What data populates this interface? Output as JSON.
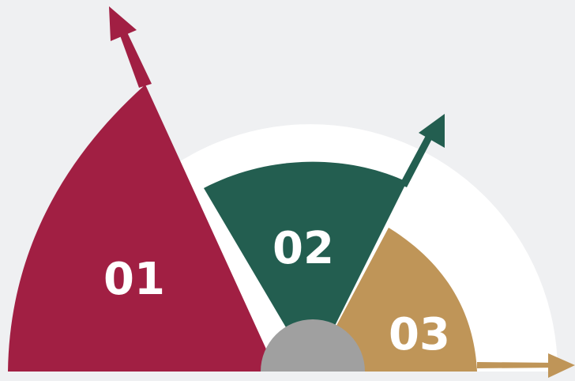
{
  "segments": [
    {
      "id": "01",
      "label": "01",
      "color": "#a11f43"
    },
    {
      "id": "02",
      "label": "02",
      "color": "#235e50"
    },
    {
      "id": "03",
      "label": "03",
      "color": "#bf9558"
    }
  ],
  "colors": {
    "background": "#eff0f2",
    "outer_ring": "#ffffff",
    "hub": "#a0a0a0"
  }
}
